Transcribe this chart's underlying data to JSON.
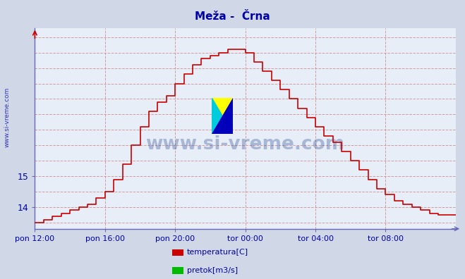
{
  "title": "Meža -  Črna",
  "bg_color": "#d0d8e8",
  "plot_bg_color": "#e8eef8",
  "line_color": "#cc0000",
  "axis_color": "#6666bb",
  "grid_color_v": "#cc8888",
  "grid_color_h": "#cc8888",
  "text_color": "#0000aa",
  "watermark_text": "www.si-vreme.com",
  "ylabel_side_text": "www.si-vreme.com",
  "legend_items": [
    {
      "label": "temperatura[C]",
      "color": "#cc0000"
    },
    {
      "label": "pretok[m3/s]",
      "color": "#00bb00"
    }
  ],
  "xtick_labels": [
    "pon 12:00",
    "pon 16:00",
    "pon 20:00",
    "tor 00:00",
    "tor 04:00",
    "tor 08:00"
  ],
  "ytick_values": [
    14,
    15
  ],
  "ylim": [
    13.3,
    19.8
  ],
  "xlim_minutes": [
    0,
    1440
  ],
  "x_tick_minutes": [
    0,
    240,
    480,
    720,
    960,
    1200
  ],
  "temperature_steps": [
    [
      0,
      13.5
    ],
    [
      30,
      13.6
    ],
    [
      60,
      13.7
    ],
    [
      90,
      13.8
    ],
    [
      120,
      13.9
    ],
    [
      150,
      14.0
    ],
    [
      180,
      14.1
    ],
    [
      210,
      14.3
    ],
    [
      240,
      14.5
    ],
    [
      270,
      14.9
    ],
    [
      300,
      15.4
    ],
    [
      330,
      16.0
    ],
    [
      360,
      16.6
    ],
    [
      390,
      17.1
    ],
    [
      420,
      17.4
    ],
    [
      450,
      17.6
    ],
    [
      480,
      18.0
    ],
    [
      510,
      18.3
    ],
    [
      540,
      18.6
    ],
    [
      570,
      18.8
    ],
    [
      600,
      18.9
    ],
    [
      630,
      19.0
    ],
    [
      660,
      19.1
    ],
    [
      690,
      19.1
    ],
    [
      720,
      19.0
    ],
    [
      750,
      18.7
    ],
    [
      780,
      18.4
    ],
    [
      810,
      18.1
    ],
    [
      840,
      17.8
    ],
    [
      870,
      17.5
    ],
    [
      900,
      17.2
    ],
    [
      930,
      16.9
    ],
    [
      960,
      16.6
    ],
    [
      990,
      16.3
    ],
    [
      1020,
      16.1
    ],
    [
      1050,
      15.8
    ],
    [
      1080,
      15.5
    ],
    [
      1110,
      15.2
    ],
    [
      1140,
      14.9
    ],
    [
      1170,
      14.6
    ],
    [
      1200,
      14.4
    ],
    [
      1230,
      14.2
    ],
    [
      1260,
      14.1
    ],
    [
      1290,
      14.0
    ],
    [
      1320,
      13.9
    ],
    [
      1350,
      13.8
    ],
    [
      1380,
      13.75
    ],
    [
      1410,
      13.75
    ],
    [
      1440,
      13.75
    ]
  ]
}
